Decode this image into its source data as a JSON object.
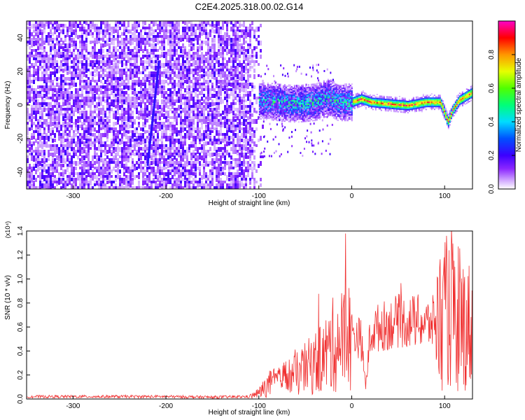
{
  "title": "C2E4.2025.318.00.02.G14",
  "chart_data": [
    {
      "type": "heatmap",
      "xlabel": "Height of straight line (km)",
      "ylabel": "Frequency (Hz)",
      "xlim": [
        -350,
        130
      ],
      "ylim": [
        -50,
        50
      ],
      "x_ticks": [
        "-300",
        "-200",
        "-100",
        "0",
        "100"
      ],
      "y_ticks": [
        "-40",
        "-20",
        "0",
        "20",
        "40"
      ],
      "colorbar": {
        "label": "Normalized spectral amplitude",
        "range": [
          0,
          1
        ],
        "ticks": [
          "0.0",
          "0.2",
          "0.4",
          "0.6",
          "0.8"
        ],
        "colormap": [
          "#ffffff",
          "#8000ff",
          "#0000ff",
          "#00ffff",
          "#00ff00",
          "#ffff00",
          "#ff8000",
          "#ff0000",
          "#ff00ff"
        ]
      },
      "noise_region_x": [
        -350,
        -100
      ],
      "ridge": {
        "x": [
          -100,
          -80,
          -60,
          -40,
          -25,
          -15,
          0,
          10,
          20,
          40,
          60,
          80,
          95,
          100,
          103,
          108,
          115,
          130
        ],
        "y": [
          3,
          2,
          1,
          2,
          5,
          2,
          2,
          4,
          2,
          1,
          0,
          2,
          2,
          -5,
          -10,
          -3,
          3,
          8
        ]
      },
      "streak": {
        "x": [
          -220,
          -208
        ],
        "y": [
          -35,
          25
        ]
      },
      "grid": false
    },
    {
      "type": "line",
      "xlabel": "Height of straight line (km)",
      "ylabel": "SNR (10 * v/v)",
      "y_multiplier": "(x10⁴)",
      "xlim": [
        -350,
        130
      ],
      "ylim": [
        0,
        1.4
      ],
      "x_ticks": [
        "-300",
        "-200",
        "-100",
        "0",
        "100"
      ],
      "y_ticks": [
        "0.0",
        "0.2",
        "0.4",
        "0.6",
        "0.8",
        "1.0",
        "1.2",
        "1.4"
      ],
      "series": [
        {
          "color": "#f03030",
          "x": [
            -350,
            -300,
            -250,
            -200,
            -150,
            -110,
            -100,
            -90,
            -80,
            -70,
            -60,
            -50,
            -40,
            -30,
            -20,
            -10,
            0,
            10,
            15,
            20,
            30,
            40,
            50,
            60,
            70,
            80,
            90,
            100,
            105,
            110,
            115,
            120,
            125,
            130
          ],
          "y": [
            0.02,
            0.02,
            0.02,
            0.02,
            0.015,
            0.02,
            0.05,
            0.12,
            0.15,
            0.18,
            0.2,
            0.25,
            0.3,
            0.35,
            0.45,
            0.5,
            0.55,
            0.5,
            0.1,
            0.55,
            0.6,
            0.62,
            0.65,
            0.64,
            0.65,
            0.62,
            0.65,
            0.7,
            0.75,
            0.8,
            0.6,
            0.65,
            0.6,
            0.65
          ]
        }
      ],
      "grid": false
    }
  ]
}
